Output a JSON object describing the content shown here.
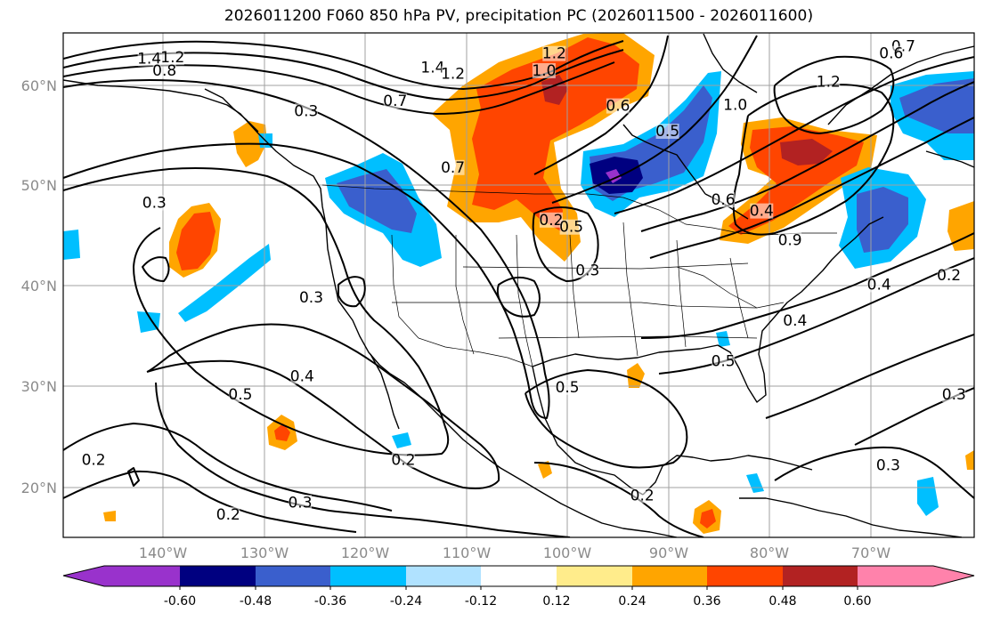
{
  "title": "2026011200 F060 850 hPa PV, precipitation PC (2026011500 - 2026011600)",
  "axes": {
    "lat_labels": [
      "60°N",
      "50°N",
      "40°N",
      "30°N",
      "20°N"
    ],
    "lon_labels": [
      "140°W",
      "130°W",
      "120°W",
      "110°W",
      "100°W",
      "90°W",
      "80°W",
      "70°W"
    ]
  },
  "colorbar": {
    "labels": [
      "-0.60",
      "-0.48",
      "-0.36",
      "-0.24",
      "-0.12",
      "0.12",
      "0.24",
      "0.36",
      "0.48",
      "0.60"
    ],
    "colors": [
      "#9932cc",
      "#000080",
      "#3a5fcd",
      "#00bfff",
      "#b0e2ff",
      "#ffffff",
      "#ffec8b",
      "#ffa500",
      "#ff4500",
      "#b22222",
      "#ff82ab"
    ]
  },
  "contour_labels": [
    {
      "text": "1.4",
      "lon": -141.5,
      "lat": 62.5
    },
    {
      "text": "1.2",
      "lon": -139.2,
      "lat": 62.6
    },
    {
      "text": "0.8",
      "lon": -140.0,
      "lat": 61.3
    },
    {
      "text": "1.4",
      "lon": -113.5,
      "lat": 61.6
    },
    {
      "text": "1.2",
      "lon": -111.5,
      "lat": 61.0
    },
    {
      "text": "1.2",
      "lon": -101.5,
      "lat": 63.0
    },
    {
      "text": "1.0",
      "lon": -102.5,
      "lat": 61.3
    },
    {
      "text": "0.7",
      "lon": -117.2,
      "lat": 58.3
    },
    {
      "text": "0.3",
      "lon": -126.0,
      "lat": 57.3
    },
    {
      "text": "0.7",
      "lon": -111.5,
      "lat": 51.7
    },
    {
      "text": "0.3",
      "lon": -141.0,
      "lat": 48.2
    },
    {
      "text": "0.2",
      "lon": -101.8,
      "lat": 46.5
    },
    {
      "text": "0.5",
      "lon": -99.8,
      "lat": 45.8
    },
    {
      "text": "0.3",
      "lon": -98.2,
      "lat": 41.5
    },
    {
      "text": "0.3",
      "lon": -125.5,
      "lat": 38.8
    },
    {
      "text": "0.4",
      "lon": -126.4,
      "lat": 31.0
    },
    {
      "text": "0.5",
      "lon": -132.5,
      "lat": 29.2
    },
    {
      "text": "0.5",
      "lon": -100.2,
      "lat": 29.9
    },
    {
      "text": "0.5",
      "lon": -84.8,
      "lat": 32.5
    },
    {
      "text": "0.2",
      "lon": -116.4,
      "lat": 22.7
    },
    {
      "text": "0.2",
      "lon": -147.0,
      "lat": 22.7
    },
    {
      "text": "0.3",
      "lon": -126.6,
      "lat": 18.5
    },
    {
      "text": "0.2",
      "lon": -133.7,
      "lat": 17.3
    },
    {
      "text": "0.2",
      "lon": -92.8,
      "lat": 19.2
    },
    {
      "text": "0.6",
      "lon": -95.2,
      "lat": 57.8
    },
    {
      "text": "0.5",
      "lon": -90.3,
      "lat": 55.3
    },
    {
      "text": "1.0",
      "lon": -83.6,
      "lat": 57.9
    },
    {
      "text": "1.2",
      "lon": -74.4,
      "lat": 60.2
    },
    {
      "text": "0.6",
      "lon": -84.8,
      "lat": 48.5
    },
    {
      "text": "0.4",
      "lon": -81.0,
      "lat": 47.4
    },
    {
      "text": "0.9",
      "lon": -78.2,
      "lat": 44.5
    },
    {
      "text": "0.4",
      "lon": -77.7,
      "lat": 36.5
    },
    {
      "text": "0.4",
      "lon": -69.4,
      "lat": 40.1
    },
    {
      "text": "0.2",
      "lon": -62.5,
      "lat": 41.0
    },
    {
      "text": "0.3",
      "lon": -62.0,
      "lat": 29.2
    },
    {
      "text": "0.3",
      "lon": -68.5,
      "lat": 22.2
    },
    {
      "text": "0.7",
      "lon": -67.0,
      "lat": 63.7
    },
    {
      "text": "0.6",
      "lon": -68.2,
      "lat": 63.0
    }
  ]
}
